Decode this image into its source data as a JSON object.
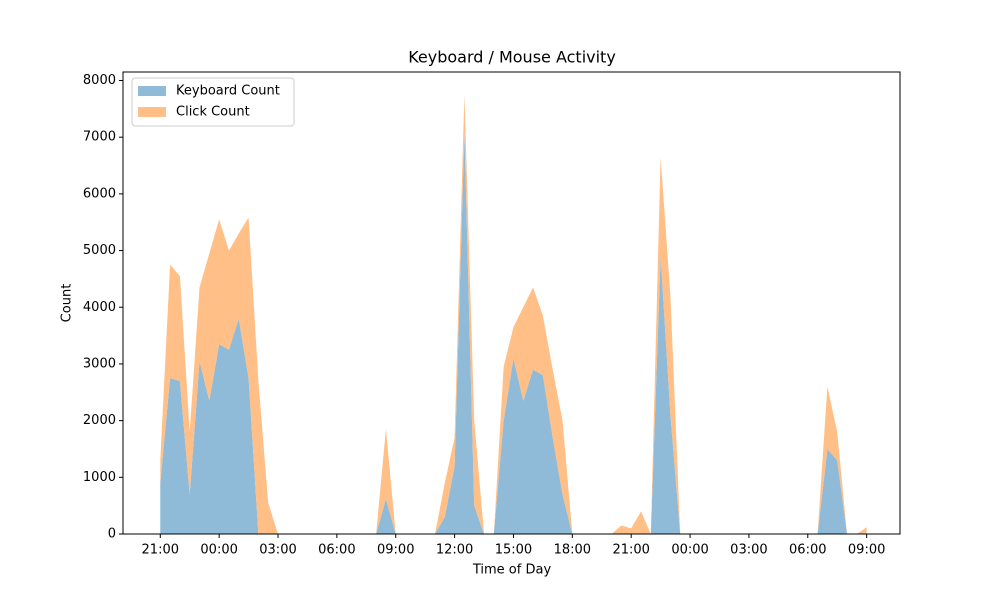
{
  "chart_data": {
    "type": "stackedarea",
    "title": "Keyboard / Mouse Activity",
    "xlabel": "Time of Day",
    "ylabel": "Count",
    "x": [
      21,
      21.5,
      22,
      22.5,
      23,
      23.5,
      24,
      24.5,
      25,
      25.5,
      26,
      26.5,
      27,
      27.5,
      28,
      28.5,
      29,
      29.5,
      30,
      30.5,
      31,
      31.5,
      32,
      32.5,
      33,
      33.5,
      34,
      34.5,
      35,
      35.5,
      36,
      36.5,
      37,
      37.5,
      38,
      38.5,
      39,
      39.5,
      40,
      40.5,
      41,
      41.5,
      42,
      42.5,
      43,
      43.5,
      44,
      44.5,
      45,
      45.5,
      46,
      46.5,
      47,
      47.5,
      48,
      48.5,
      49,
      49.5,
      50,
      50.5,
      51,
      51.5,
      52,
      52.5,
      53,
      53.5,
      54,
      54.5,
      55,
      55.5,
      56,
      56.5,
      57
    ],
    "series": [
      {
        "name": "Keyboard Count",
        "color": "#8fbbd9",
        "values": [
          900,
          2750,
          2700,
          700,
          3050,
          2350,
          3350,
          3250,
          3800,
          2750,
          0,
          0,
          0,
          0,
          0,
          0,
          0,
          0,
          0,
          0,
          0,
          0,
          0,
          620,
          0,
          0,
          0,
          0,
          0,
          300,
          1200,
          7100,
          500,
          0,
          0,
          2000,
          3100,
          2350,
          2900,
          2800,
          1700,
          700,
          0,
          0,
          0,
          0,
          0,
          0,
          0,
          0,
          0,
          4900,
          2100,
          0,
          0,
          0,
          0,
          0,
          0,
          0,
          0,
          0,
          0,
          0,
          0,
          0,
          0,
          0,
          1500,
          1300,
          0,
          0,
          0
        ]
      },
      {
        "name": "Click Count",
        "color": "#ffbf86",
        "values": [
          400,
          2000,
          1850,
          1100,
          1300,
          2600,
          2200,
          1750,
          1500,
          2830,
          2700,
          550,
          0,
          0,
          0,
          0,
          0,
          0,
          0,
          0,
          0,
          0,
          0,
          1230,
          0,
          0,
          0,
          0,
          0,
          600,
          500,
          650,
          1500,
          0,
          0,
          950,
          550,
          1650,
          1450,
          1050,
          1200,
          1300,
          0,
          0,
          0,
          0,
          0,
          150,
          100,
          400,
          0,
          1750,
          2100,
          0,
          0,
          0,
          0,
          0,
          0,
          0,
          0,
          0,
          0,
          0,
          0,
          0,
          0,
          0,
          1100,
          500,
          0,
          0,
          120
        ]
      }
    ],
    "xlim": [
      19.1,
      58.7
    ],
    "xticks": [
      {
        "value": 21,
        "label": "21:00"
      },
      {
        "value": 24,
        "label": "00:00"
      },
      {
        "value": 27,
        "label": "03:00"
      },
      {
        "value": 30,
        "label": "06:00"
      },
      {
        "value": 33,
        "label": "09:00"
      },
      {
        "value": 36,
        "label": "12:00"
      },
      {
        "value": 39,
        "label": "15:00"
      },
      {
        "value": 42,
        "label": "18:00"
      },
      {
        "value": 45,
        "label": "21:00"
      },
      {
        "value": 48,
        "label": "00:00"
      },
      {
        "value": 51,
        "label": "03:00"
      },
      {
        "value": 54,
        "label": "06:00"
      },
      {
        "value": 57,
        "label": "09:00"
      }
    ],
    "ylim": [
      0,
      8150
    ],
    "yticks": [
      0,
      1000,
      2000,
      3000,
      4000,
      5000,
      6000,
      7000,
      8000
    ],
    "legend": "upper left"
  }
}
